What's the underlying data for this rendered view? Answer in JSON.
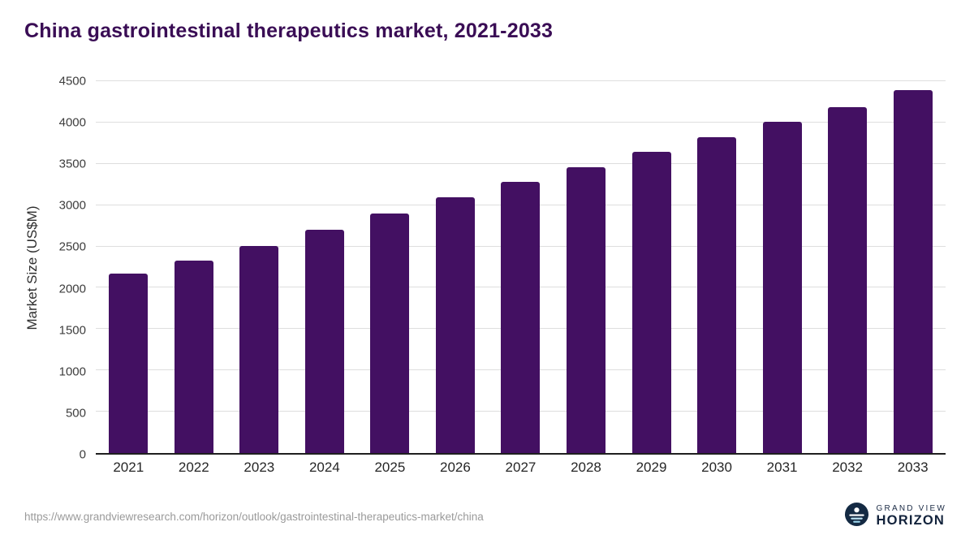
{
  "chart_data": {
    "type": "bar",
    "title": "China gastrointestinal therapeutics market, 2021-2033",
    "xlabel": "",
    "ylabel": "Market Size (US$M)",
    "categories": [
      "2021",
      "2022",
      "2023",
      "2024",
      "2025",
      "2026",
      "2027",
      "2028",
      "2029",
      "2030",
      "2031",
      "2032",
      "2033"
    ],
    "values": [
      2170,
      2325,
      2510,
      2700,
      2900,
      3100,
      3285,
      3460,
      3645,
      3820,
      4010,
      4190,
      4390
    ],
    "ylim": [
      0,
      4500
    ],
    "yticks": [
      0,
      500,
      1000,
      1500,
      2000,
      2500,
      3000,
      3500,
      4000,
      4500
    ],
    "grid": "horizontal",
    "legend": "none",
    "bar_color": "#431062"
  },
  "colors": {
    "title": "#3a0d55",
    "bar": "#431062",
    "gridline": "#dedede",
    "axis": "#1f1f1f",
    "logo_navy": "#142a43",
    "logo_light_blue": "#9ed7ee"
  },
  "footer": {
    "source_url": "https://www.grandviewresearch.com/horizon/outlook/gastrointestinal-therapeutics-market/china",
    "logo": {
      "line1": "GRAND VIEW",
      "line2": "HORIZON"
    }
  }
}
